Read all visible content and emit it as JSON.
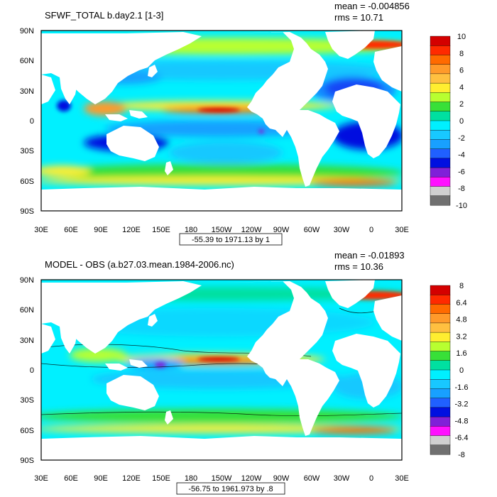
{
  "panels": [
    {
      "title": "SFWF_TOTAL b.day2.1 [1-3]",
      "mean_label": "mean = -0.004856",
      "rms_label": "rms = 10.71",
      "range_label": "-55.39 to 1971.13 by 1",
      "colorbar_labels": [
        "10",
        "8",
        "6",
        "4",
        "2",
        "0",
        "-2",
        "-4",
        "-6",
        "-8",
        "-10"
      ],
      "colorbar_colors": [
        "#d40000",
        "#ff2a00",
        "#ff6a00",
        "#ff9a2a",
        "#ffc040",
        "#ffee30",
        "#b8ff30",
        "#38e038",
        "#00e0a0",
        "#00f0ff",
        "#18c8ff",
        "#18a0ff",
        "#2060ff",
        "#0010e0",
        "#8020d8",
        "#ff10ff",
        "#d0d0d0",
        "#707070"
      ],
      "has_contours": false
    },
    {
      "title": "MODEL - OBS (a.b27.03.mean.1984-2006.nc)",
      "mean_label": "mean = -0.01893",
      "rms_label": "rms = 10.36",
      "range_label": "-56.75 to 1961.973 by .8",
      "colorbar_labels": [
        "8",
        "6.4",
        "4.8",
        "3.2",
        "1.6",
        "0",
        "-1.6",
        "-3.2",
        "-4.8",
        "-6.4",
        "-8"
      ],
      "colorbar_colors": [
        "#d40000",
        "#ff2a00",
        "#ff6a00",
        "#ff9a2a",
        "#ffc040",
        "#ffee30",
        "#b8ff30",
        "#38e038",
        "#00e0a0",
        "#00f0ff",
        "#18c8ff",
        "#18a0ff",
        "#2060ff",
        "#0010e0",
        "#8020d8",
        "#ff10ff",
        "#d0d0d0",
        "#707070"
      ],
      "has_contours": true
    }
  ],
  "lat_labels": [
    "90N",
    "60N",
    "30N",
    "0",
    "30S",
    "60S",
    "90S"
  ],
  "lon_labels": [
    "30E",
    "60E",
    "90E",
    "120E",
    "150E",
    "180",
    "150W",
    "120W",
    "90W",
    "60W",
    "30W",
    "0",
    "30E"
  ]
}
